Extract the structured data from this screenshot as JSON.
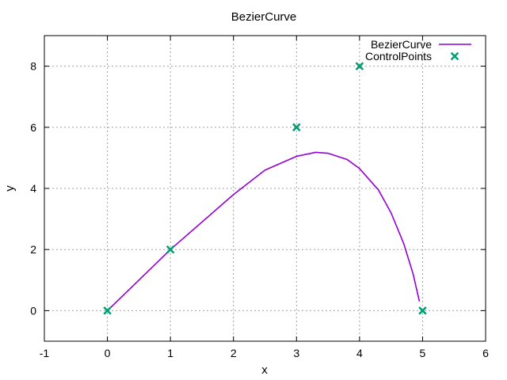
{
  "chart_data": {
    "type": "line",
    "title": "BezierCurve",
    "xlabel": "x",
    "ylabel": "y",
    "xlim": [
      -1,
      6
    ],
    "ylim": [
      -1,
      9
    ],
    "xticks": [
      "-1",
      "0",
      "1",
      "2",
      "3",
      "4",
      "5",
      "6"
    ],
    "yticks": [
      "0",
      "2",
      "4",
      "6",
      "8"
    ],
    "grid": true,
    "legend": "top-right",
    "series": [
      {
        "name": "BezierCurve",
        "kind": "line",
        "color": "#9400d3",
        "points": [
          [
            0,
            0
          ],
          [
            1,
            2
          ],
          [
            2,
            3.8
          ],
          [
            2.5,
            4.6
          ],
          [
            3,
            5.05
          ],
          [
            3.3,
            5.18
          ],
          [
            3.5,
            5.15
          ],
          [
            3.8,
            4.95
          ],
          [
            4.0,
            4.65
          ],
          [
            4.3,
            3.95
          ],
          [
            4.5,
            3.2
          ],
          [
            4.7,
            2.2
          ],
          [
            4.85,
            1.2
          ],
          [
            4.95,
            0.3
          ]
        ]
      },
      {
        "name": "ControlPoints",
        "kind": "points",
        "marker": "x",
        "color": "#009e73",
        "points": [
          [
            0,
            0
          ],
          [
            1,
            2
          ],
          [
            3,
            6
          ],
          [
            4,
            8
          ],
          [
            5,
            0
          ]
        ]
      }
    ]
  }
}
